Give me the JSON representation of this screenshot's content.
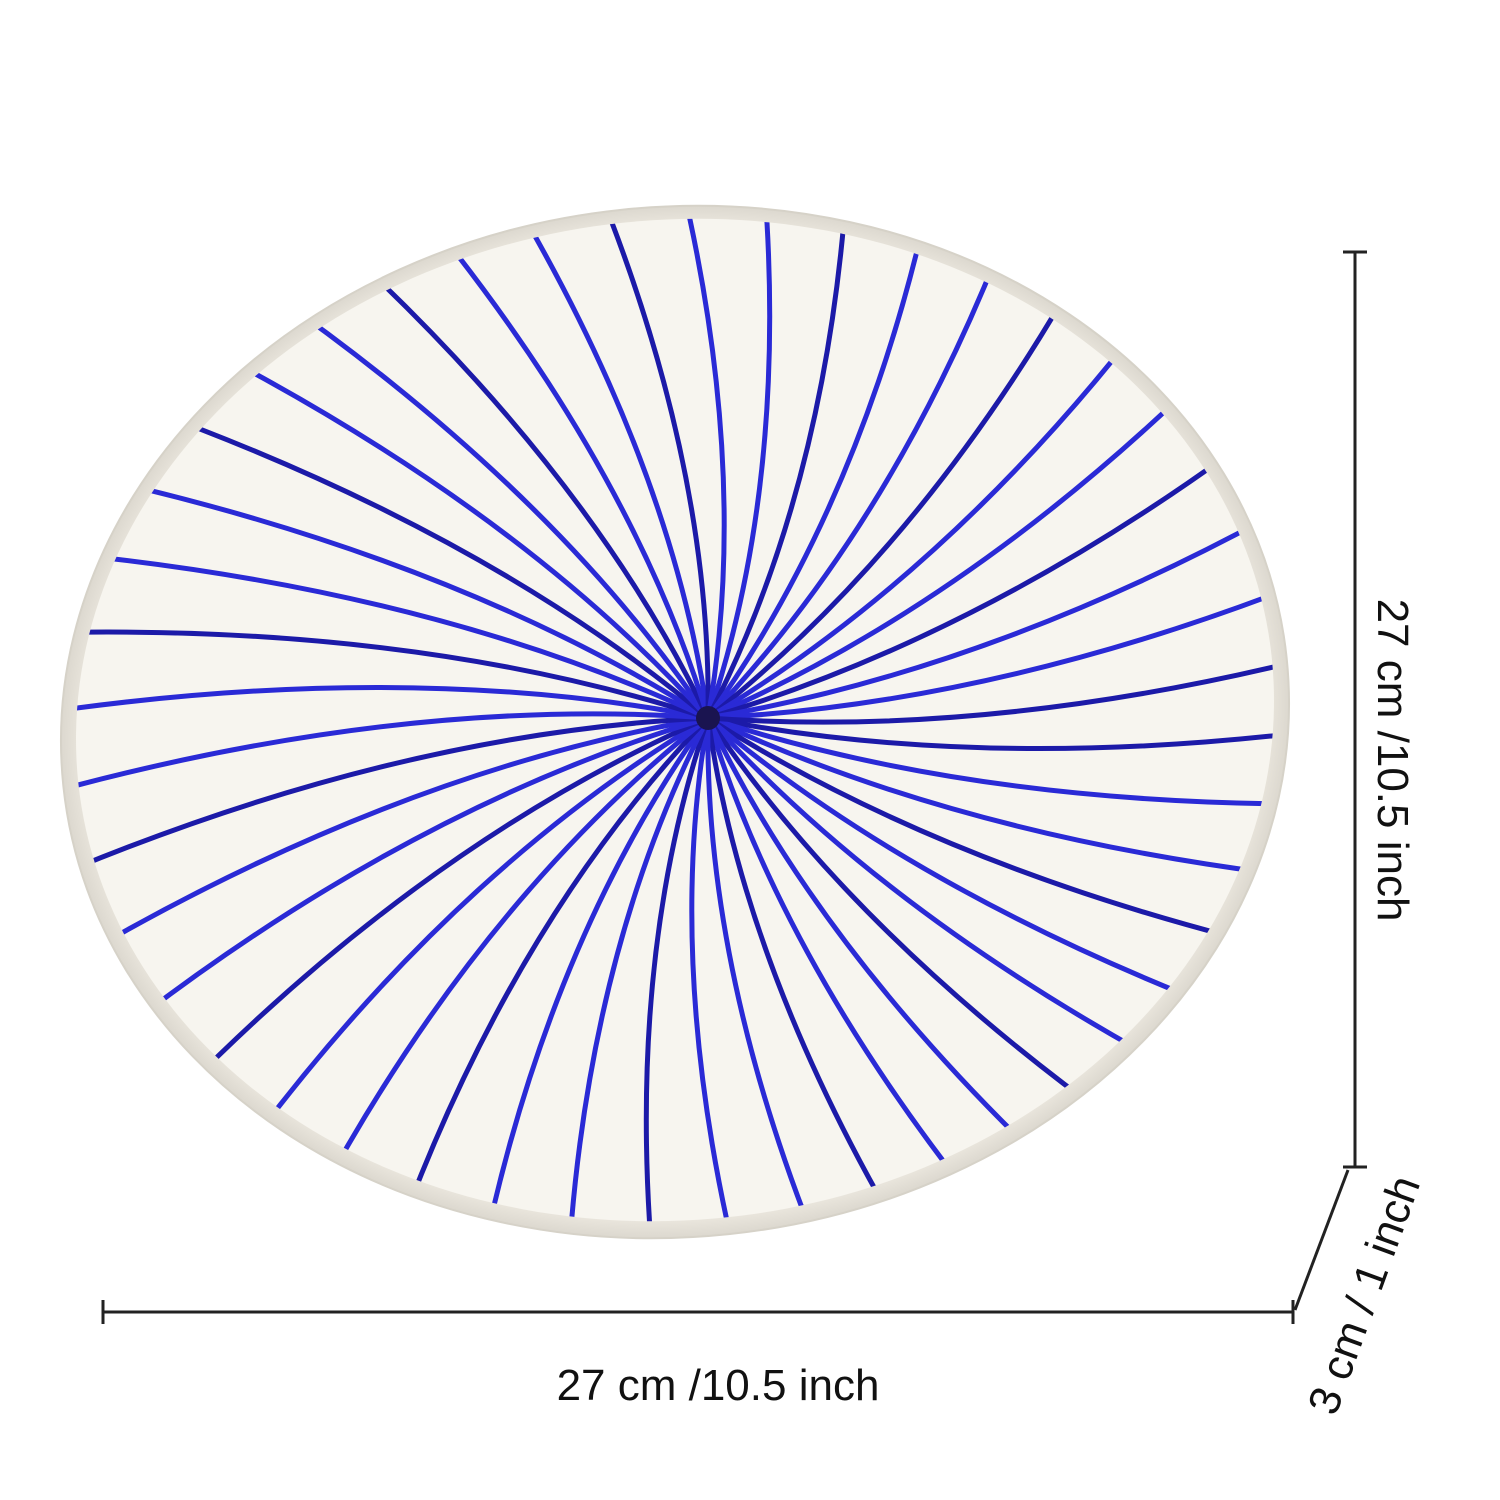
{
  "dimensions": {
    "width": "27 cm /10.5 inch",
    "length": "27 cm /10.5 inch",
    "height": "3 cm / 1 inch"
  }
}
